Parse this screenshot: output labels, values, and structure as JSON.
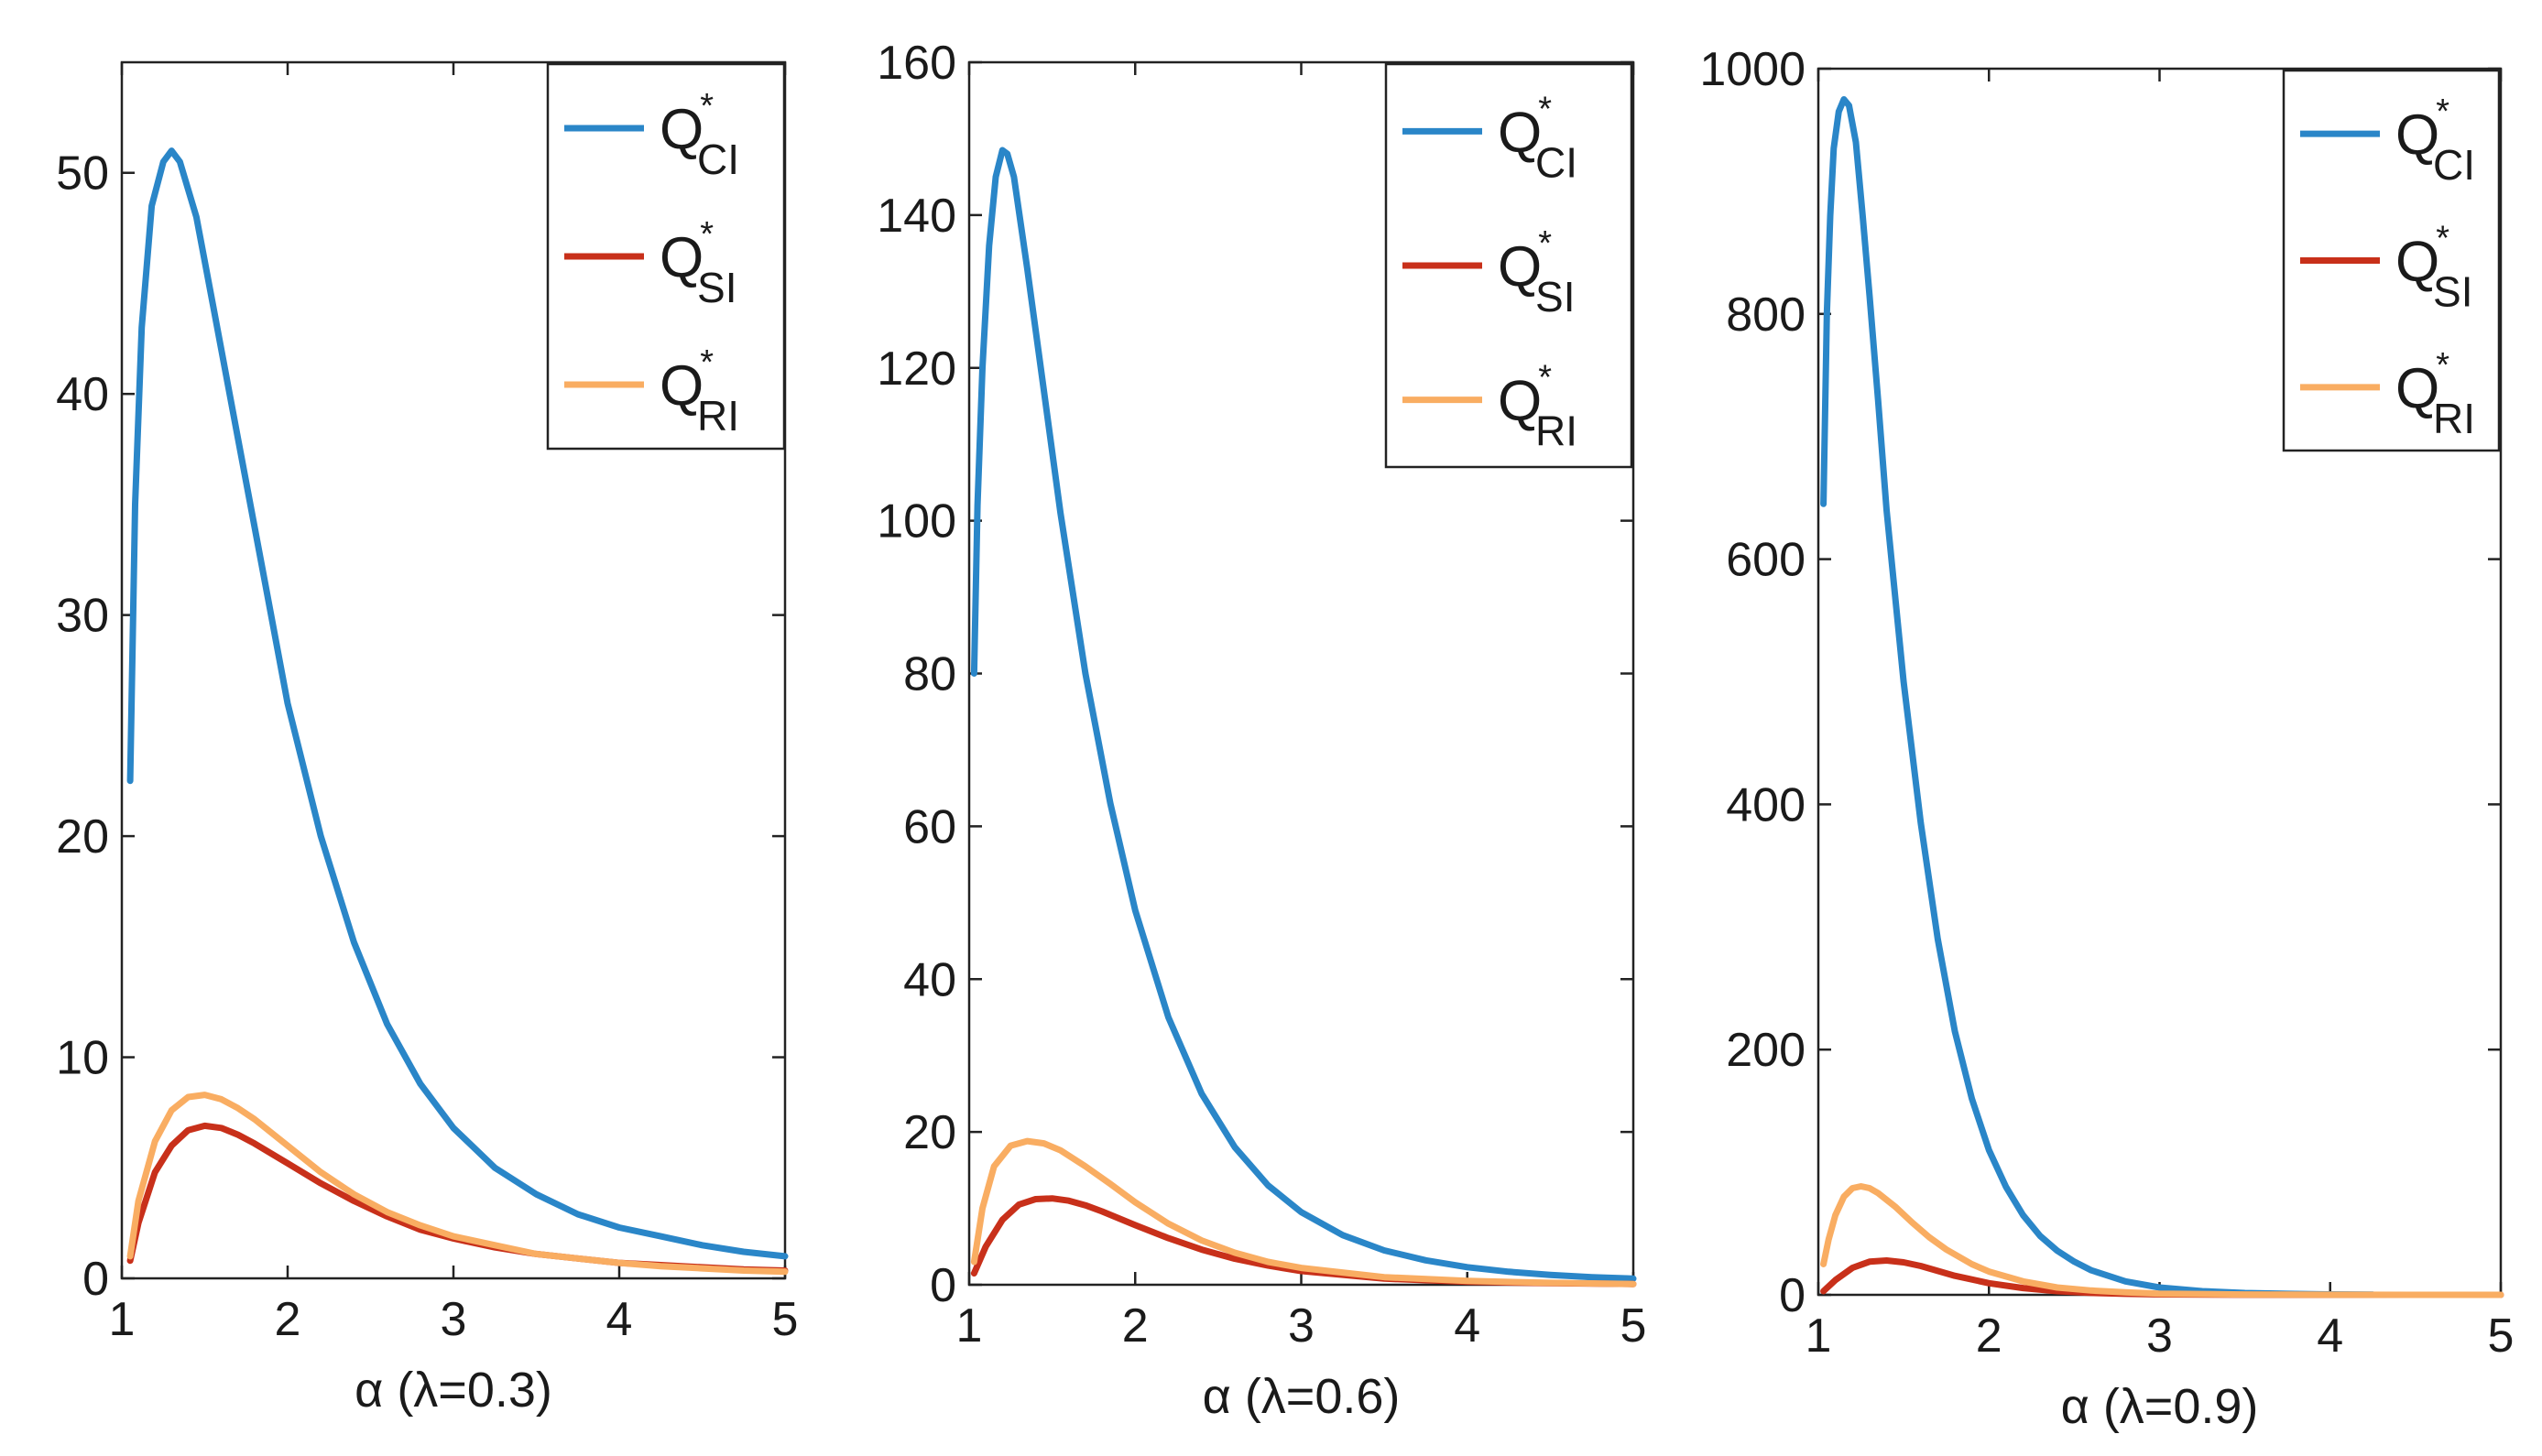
{
  "figure": {
    "legend_entries": [
      {
        "base": "Q",
        "sup": "*",
        "sub": "CI",
        "series": "Q_CI"
      },
      {
        "base": "Q",
        "sup": "*",
        "sub": "SI",
        "series": "Q_SI"
      },
      {
        "base": "Q",
        "sup": "*",
        "sub": "RI",
        "series": "Q_RI"
      }
    ],
    "colors": {
      "Q_CI": "#2a86c8",
      "Q_SI": "#c8301a",
      "Q_RI": "#f9ad62"
    }
  },
  "chart_data": [
    {
      "type": "line",
      "title": "",
      "xlabel": "α (λ=0.3)",
      "ylabel": "",
      "xlim": [
        1,
        5
      ],
      "ylim": [
        0,
        55
      ],
      "xticks": [
        1,
        2,
        3,
        4,
        5
      ],
      "yticks": [
        0,
        10,
        20,
        30,
        40,
        50
      ],
      "legend": "top-right",
      "grid": false,
      "series": [
        {
          "name": "Q_CI",
          "x": [
            1.05,
            1.08,
            1.12,
            1.18,
            1.25,
            1.3,
            1.35,
            1.45,
            1.55,
            1.7,
            1.85,
            2.0,
            2.2,
            2.4,
            2.6,
            2.8,
            3.0,
            3.25,
            3.5,
            3.75,
            4.0,
            4.25,
            4.5,
            4.75,
            5.0
          ],
          "y": [
            22.5,
            35,
            43,
            48.5,
            50.5,
            51,
            50.5,
            48,
            44,
            38,
            32,
            26,
            20,
            15.2,
            11.5,
            8.8,
            6.8,
            5.0,
            3.8,
            2.9,
            2.3,
            1.9,
            1.5,
            1.2,
            1.0
          ]
        },
        {
          "name": "Q_SI",
          "x": [
            1.05,
            1.1,
            1.2,
            1.3,
            1.4,
            1.5,
            1.6,
            1.7,
            1.8,
            2.0,
            2.2,
            2.4,
            2.6,
            2.8,
            3.0,
            3.25,
            3.5,
            3.75,
            4.0,
            4.25,
            4.5,
            4.75,
            5.0
          ],
          "y": [
            0.8,
            2.5,
            4.8,
            6.0,
            6.7,
            6.9,
            6.8,
            6.5,
            6.1,
            5.2,
            4.3,
            3.5,
            2.8,
            2.2,
            1.8,
            1.4,
            1.1,
            0.9,
            0.7,
            0.6,
            0.5,
            0.4,
            0.35
          ]
        },
        {
          "name": "Q_RI",
          "x": [
            1.05,
            1.1,
            1.2,
            1.3,
            1.4,
            1.5,
            1.6,
            1.7,
            1.8,
            2.0,
            2.2,
            2.4,
            2.6,
            2.8,
            3.0,
            3.25,
            3.5,
            3.75,
            4.0,
            4.25,
            4.5,
            4.75,
            5.0
          ],
          "y": [
            1.0,
            3.5,
            6.2,
            7.6,
            8.2,
            8.3,
            8.1,
            7.7,
            7.2,
            6.0,
            4.8,
            3.8,
            3.0,
            2.4,
            1.9,
            1.5,
            1.1,
            0.9,
            0.7,
            0.55,
            0.45,
            0.35,
            0.3
          ]
        }
      ]
    },
    {
      "type": "line",
      "title": "",
      "xlabel": "α (λ=0.6)",
      "ylabel": "",
      "xlim": [
        1,
        5
      ],
      "ylim": [
        0,
        160
      ],
      "xticks": [
        1,
        2,
        3,
        4,
        5
      ],
      "yticks": [
        0,
        20,
        40,
        60,
        80,
        100,
        120,
        140,
        160
      ],
      "legend": "top-right",
      "grid": false,
      "series": [
        {
          "name": "Q_CI",
          "x": [
            1.03,
            1.05,
            1.08,
            1.12,
            1.16,
            1.2,
            1.23,
            1.27,
            1.35,
            1.45,
            1.55,
            1.7,
            1.85,
            2.0,
            2.2,
            2.4,
            2.6,
            2.8,
            3.0,
            3.25,
            3.5,
            3.75,
            4.0,
            4.25,
            4.5,
            4.75,
            5.0
          ],
          "y": [
            80,
            102,
            120,
            136,
            145,
            148.5,
            148,
            145,
            133,
            117,
            101,
            80,
            63,
            49,
            35,
            25,
            18,
            13,
            9.5,
            6.5,
            4.5,
            3.2,
            2.3,
            1.7,
            1.3,
            1.0,
            0.8
          ]
        },
        {
          "name": "Q_SI",
          "x": [
            1.03,
            1.1,
            1.2,
            1.3,
            1.4,
            1.5,
            1.6,
            1.7,
            1.8,
            2.0,
            2.2,
            2.4,
            2.6,
            2.8,
            3.0,
            3.5,
            4.0,
            4.5,
            5.0
          ],
          "y": [
            1.5,
            5,
            8.5,
            10.5,
            11.2,
            11.3,
            11.0,
            10.4,
            9.6,
            7.8,
            6.1,
            4.6,
            3.4,
            2.5,
            1.8,
            0.8,
            0.4,
            0.2,
            0.1
          ]
        },
        {
          "name": "Q_RI",
          "x": [
            1.03,
            1.08,
            1.15,
            1.25,
            1.35,
            1.45,
            1.55,
            1.7,
            1.85,
            2.0,
            2.2,
            2.4,
            2.6,
            2.8,
            3.0,
            3.5,
            4.0,
            4.5,
            5.0
          ],
          "y": [
            3,
            10,
            15.5,
            18.2,
            18.8,
            18.5,
            17.6,
            15.5,
            13.2,
            10.8,
            8.0,
            5.8,
            4.2,
            3.0,
            2.2,
            1.0,
            0.5,
            0.25,
            0.1
          ]
        }
      ]
    },
    {
      "type": "line",
      "title": "",
      "xlabel": "α (λ=0.9)",
      "ylabel": "",
      "xlim": [
        1,
        5
      ],
      "ylim": [
        0,
        1000
      ],
      "xticks": [
        1,
        2,
        3,
        4,
        5
      ],
      "yticks": [
        0,
        200,
        400,
        600,
        800,
        1000
      ],
      "legend": "top-right",
      "grid": false,
      "series": [
        {
          "name": "Q_CI",
          "x": [
            1.03,
            1.05,
            1.07,
            1.09,
            1.12,
            1.15,
            1.18,
            1.22,
            1.26,
            1.3,
            1.35,
            1.4,
            1.5,
            1.6,
            1.7,
            1.8,
            1.9,
            2.0,
            2.1,
            2.2,
            2.3,
            2.4,
            2.5,
            2.6,
            2.8,
            3.0,
            3.25,
            3.5,
            3.75,
            4.0,
            4.25
          ],
          "y": [
            645,
            800,
            880,
            935,
            965,
            975,
            970,
            940,
            880,
            815,
            730,
            640,
            500,
            385,
            290,
            215,
            160,
            118,
            88,
            65,
            48,
            36,
            27,
            20,
            11,
            6,
            3,
            1.5,
            0.8,
            0.4,
            0.2
          ]
        },
        {
          "name": "Q_SI",
          "x": [
            1.03,
            1.1,
            1.2,
            1.3,
            1.4,
            1.5,
            1.6,
            1.7,
            1.8,
            2.0,
            2.2,
            2.4,
            2.6,
            2.8,
            3.0,
            3.5,
            4.0,
            4.5,
            5.0
          ],
          "y": [
            3,
            12,
            22,
            27,
            28,
            26.5,
            23.5,
            19.5,
            15.5,
            9.5,
            5.5,
            3.0,
            1.6,
            0.8,
            0.4,
            0.1,
            0,
            0,
            0
          ]
        },
        {
          "name": "Q_RI",
          "x": [
            1.03,
            1.06,
            1.1,
            1.15,
            1.2,
            1.25,
            1.3,
            1.35,
            1.45,
            1.55,
            1.65,
            1.75,
            1.9,
            2.0,
            2.2,
            2.4,
            2.6,
            2.8,
            3.0,
            3.5,
            4.0,
            4.5,
            5.0
          ],
          "y": [
            25,
            45,
            65,
            80,
            87,
            88.5,
            87,
            83,
            72,
            59,
            47,
            37,
            25,
            19,
            11,
            6,
            3.5,
            2,
            1,
            0.3,
            0.1,
            0,
            0
          ]
        }
      ]
    }
  ]
}
